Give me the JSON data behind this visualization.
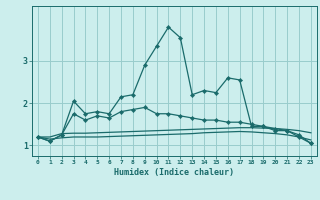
{
  "xlabel": "Humidex (Indice chaleur)",
  "background_color": "#cceeed",
  "grid_color": "#99cccc",
  "line_color": "#1a6b6b",
  "xlim": [
    -0.5,
    23.5
  ],
  "ylim": [
    0.75,
    4.3
  ],
  "yticks": [
    1,
    2,
    3
  ],
  "xticks": [
    0,
    1,
    2,
    3,
    4,
    5,
    6,
    7,
    8,
    9,
    10,
    11,
    12,
    13,
    14,
    15,
    16,
    17,
    18,
    19,
    20,
    21,
    22,
    23
  ],
  "line1_x": [
    0,
    1,
    2,
    3,
    4,
    5,
    6,
    7,
    8,
    9,
    10,
    11,
    12,
    13,
    14,
    15,
    16,
    17,
    18,
    19,
    20,
    21,
    22,
    23
  ],
  "line1_y": [
    1.2,
    1.1,
    1.25,
    2.05,
    1.75,
    1.8,
    1.75,
    2.15,
    2.2,
    2.9,
    3.35,
    3.8,
    3.55,
    2.2,
    2.3,
    2.25,
    2.6,
    2.55,
    1.45,
    1.45,
    1.35,
    1.35,
    1.2,
    1.05
  ],
  "line2_x": [
    0,
    1,
    2,
    3,
    4,
    5,
    6,
    7,
    8,
    9,
    10,
    11,
    12,
    13,
    14,
    15,
    16,
    17,
    18,
    19,
    20,
    21,
    22,
    23
  ],
  "line2_y": [
    1.2,
    1.1,
    1.25,
    1.75,
    1.6,
    1.7,
    1.65,
    1.8,
    1.85,
    1.9,
    1.75,
    1.75,
    1.7,
    1.65,
    1.6,
    1.6,
    1.55,
    1.55,
    1.5,
    1.45,
    1.4,
    1.35,
    1.25,
    1.05
  ],
  "line3_x": [
    0,
    1,
    2,
    3,
    4,
    5,
    6,
    7,
    8,
    9,
    10,
    11,
    12,
    13,
    14,
    15,
    16,
    17,
    18,
    19,
    20,
    21,
    22,
    23
  ],
  "line3_y": [
    1.2,
    1.2,
    1.28,
    1.29,
    1.29,
    1.3,
    1.31,
    1.32,
    1.33,
    1.34,
    1.35,
    1.36,
    1.37,
    1.38,
    1.39,
    1.4,
    1.41,
    1.42,
    1.42,
    1.41,
    1.4,
    1.38,
    1.35,
    1.3
  ],
  "line4_x": [
    0,
    1,
    2,
    3,
    4,
    5,
    6,
    7,
    8,
    9,
    10,
    11,
    12,
    13,
    14,
    15,
    16,
    17,
    18,
    19,
    20,
    21,
    22,
    23
  ],
  "line4_y": [
    1.2,
    1.15,
    1.18,
    1.2,
    1.2,
    1.2,
    1.21,
    1.22,
    1.23,
    1.24,
    1.25,
    1.26,
    1.27,
    1.28,
    1.3,
    1.31,
    1.32,
    1.33,
    1.32,
    1.3,
    1.28,
    1.25,
    1.2,
    1.13
  ]
}
